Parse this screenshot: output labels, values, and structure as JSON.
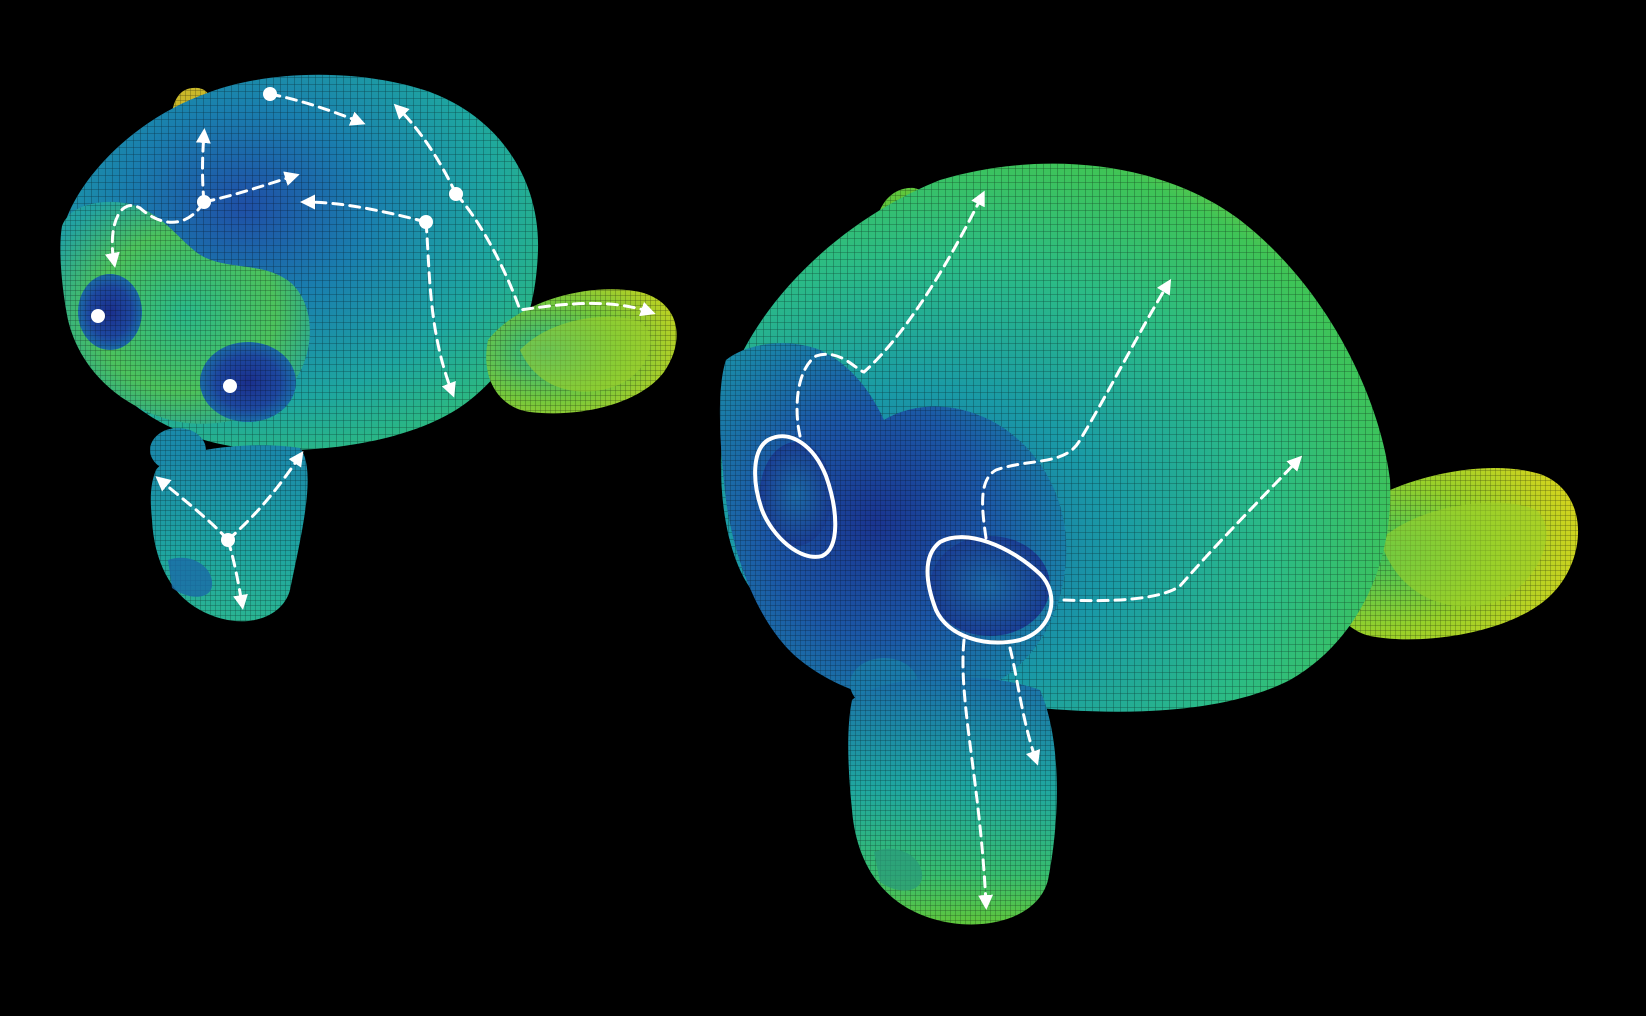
{
  "figure": {
    "background_color": "#000000",
    "annotation_color": "#ffffff",
    "colormap": [
      "#1a2f8c",
      "#1565a8",
      "#1a98a8",
      "#26b892",
      "#3fc45a",
      "#9bd12c",
      "#e3d21c"
    ]
  },
  "panels": [
    {
      "panel_id": "left-head",
      "view": "top-left",
      "source_marker": "filled-dot",
      "source_count": 7,
      "path_style": "dashed-arrow"
    },
    {
      "panel_id": "right-head",
      "view": "front-left",
      "source_marker": "closed-outline",
      "source_count": 2,
      "path_style": "dashed-arrow"
    }
  ]
}
